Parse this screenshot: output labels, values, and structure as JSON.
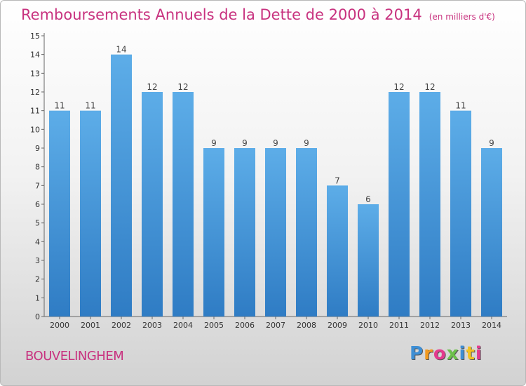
{
  "chart_data": {
    "type": "bar",
    "title": "Remboursements Annuels de la Dette de 2000 à 2014",
    "subtitle": "(en milliers d'€)",
    "categories": [
      "2000",
      "2001",
      "2002",
      "2003",
      "2004",
      "2005",
      "2006",
      "2007",
      "2008",
      "2009",
      "2010",
      "2011",
      "2012",
      "2013",
      "2014"
    ],
    "values": [
      11,
      11,
      14,
      12,
      12,
      9,
      9,
      9,
      9,
      7,
      6,
      12,
      12,
      11,
      9
    ],
    "ylim": [
      0,
      15
    ],
    "yticks": [
      0,
      1,
      2,
      3,
      4,
      5,
      6,
      7,
      8,
      9,
      10,
      11,
      12,
      13,
      14,
      15
    ],
    "xlabel": "",
    "ylabel": "",
    "bar_color": "#4f9fe0",
    "grid": false
  },
  "footer": {
    "town": "BOUVELINGHEM",
    "logo_letters": [
      "P",
      "r",
      "o",
      "x",
      "i",
      "t",
      "i"
    ],
    "logo_colors": [
      "#3e8fd5",
      "#f29a1f",
      "#e43a8e",
      "#6cc04a",
      "#3e8fd5",
      "#f2c21f",
      "#e43a8e"
    ]
  },
  "accent_color": "#c8327f"
}
